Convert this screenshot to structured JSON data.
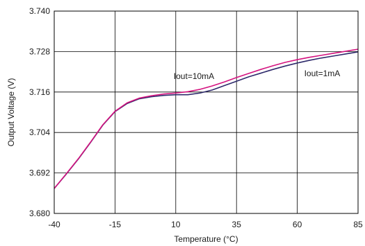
{
  "chart_data": {
    "type": "line",
    "xlabel": "Temperature (°C)",
    "ylabel": "Output Voltage (V)",
    "xlim": [
      -40,
      85
    ],
    "ylim": [
      3.68,
      3.74
    ],
    "x_ticks": [
      -40,
      -15,
      10,
      35,
      60,
      85
    ],
    "x_tick_labels": [
      "-40",
      "-15",
      "10",
      "35",
      "60",
      "85"
    ],
    "y_ticks": [
      3.68,
      3.692,
      3.704,
      3.716,
      3.728,
      3.74
    ],
    "y_tick_labels": [
      "3.680",
      "3.692",
      "3.704",
      "3.716",
      "3.728",
      "3.740"
    ],
    "grid": true,
    "series": [
      {
        "name": "Iout=10mA",
        "color": "#d4127f",
        "x": [
          -40,
          -35,
          -30,
          -25,
          -20,
          -15,
          -10,
          -5,
          0,
          5,
          10,
          15,
          20,
          25,
          30,
          35,
          40,
          45,
          50,
          55,
          60,
          65,
          70,
          75,
          80,
          85
        ],
        "y": [
          3.6874,
          3.6918,
          3.6963,
          3.7012,
          3.7063,
          3.7103,
          3.7128,
          3.7142,
          3.7149,
          3.7154,
          3.7157,
          3.7161,
          3.7168,
          3.7178,
          3.719,
          3.7203,
          3.7215,
          3.7227,
          3.7238,
          3.7248,
          3.7256,
          3.7263,
          3.7269,
          3.7275,
          3.7281,
          3.7287
        ]
      },
      {
        "name": "Iout=1mA",
        "color": "#2e2a6b",
        "x": [
          -40,
          -35,
          -30,
          -25,
          -20,
          -15,
          -10,
          -5,
          0,
          5,
          10,
          15,
          20,
          25,
          30,
          35,
          40,
          45,
          50,
          55,
          60,
          65,
          70,
          75,
          80,
          85
        ],
        "y": [
          3.6874,
          3.6917,
          3.6962,
          3.7011,
          3.7062,
          3.7102,
          3.7126,
          3.714,
          3.7146,
          3.715,
          3.7152,
          3.7152,
          3.7157,
          3.7166,
          3.7179,
          3.7192,
          3.7205,
          3.7216,
          3.7227,
          3.7237,
          3.7246,
          3.7254,
          3.7261,
          3.7267,
          3.7273,
          3.7279
        ]
      }
    ]
  }
}
